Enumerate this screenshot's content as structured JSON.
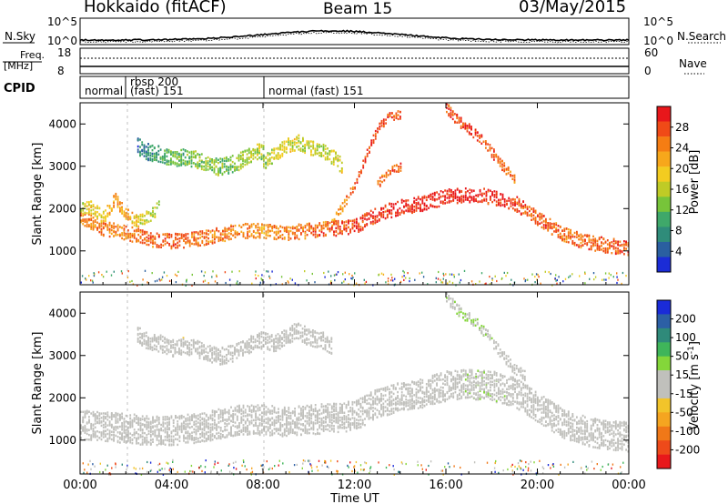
{
  "header": {
    "title": "Hokkaido (fitACF)",
    "beam": "Beam 15",
    "date": "03/May/2015"
  },
  "panels": {
    "nsky": {
      "left_label": "N.Sky",
      "left_ticks": [
        "10^5",
        "10^0"
      ],
      "right_label": "N.Search",
      "right_ticks": [
        "10^5",
        "10^0"
      ]
    },
    "freq": {
      "left_label_1": "Freq.",
      "left_label_2": "[MHz]",
      "left_ticks": [
        "18",
        "8"
      ],
      "right_label": "Nave",
      "right_ticks": [
        "60",
        "0"
      ]
    },
    "cpid": {
      "label": "CPID",
      "segments": [
        {
          "start": "00:00",
          "end": "02:00",
          "text": "normal",
          "text2": ""
        },
        {
          "start": "02:00",
          "end": "08:00",
          "text": "rbsp 200",
          "text2": "(fast) 151"
        },
        {
          "start": "08:00",
          "end": "24:00",
          "text": "normal (fast) 151",
          "text2": ""
        }
      ]
    }
  },
  "time_axis": {
    "ticks": [
      "00:00",
      "04:00",
      "08:00",
      "12:00",
      "16:00",
      "20:00",
      "00:00"
    ],
    "label": "Time UT"
  },
  "colorbars": {
    "power": {
      "label": "Power [dB]",
      "ticks": [
        "28",
        "24",
        "20",
        "16",
        "12",
        "8",
        "4"
      ],
      "colors": [
        "#e8171b",
        "#f04a17",
        "#f57d13",
        "#f7a71b",
        "#f3cc20",
        "#bfcb26",
        "#77c43a",
        "#3fa86a",
        "#2f8c7a",
        "#2a5fa0",
        "#1b2cd6"
      ]
    },
    "velocity": {
      "label": "Velocity [m s",
      "label_sup": "-1",
      "label_end": "]",
      "ticks": [
        "200",
        "100",
        "50",
        "15",
        "-15",
        "-50",
        "-100",
        "-200"
      ],
      "colors": [
        "#1a2bd8",
        "#2c5fa5",
        "#2f8a7a",
        "#3fb55a",
        "#84d63a",
        "#c0c0bc",
        "#c0c0bc",
        "#f2c42a",
        "#f5a520",
        "#f07818",
        "#ee4a1a",
        "#e8181b"
      ]
    }
  },
  "chart_data": {
    "type": "heatmap",
    "x_unit": "hours UT",
    "xlim": [
      0,
      24
    ],
    "panels": [
      {
        "name": "Power",
        "ylabel": "Slant Range [km]",
        "yticks": [
          1000,
          2000,
          3000,
          4000
        ],
        "ylim": [
          200,
          4500
        ],
        "colorbar": "power",
        "cbar_range": [
          0,
          32
        ],
        "bands": [
          {
            "t": [
              0,
              1,
              2,
              3,
              4,
              5,
              6,
              7,
              8,
              9,
              10,
              11,
              12,
              13,
              14,
              15,
              16,
              17,
              18,
              19,
              20,
              21,
              22,
              23,
              24
            ],
            "range": [
              1800,
              1550,
              1450,
              1300,
              1250,
              1300,
              1400,
              1500,
              1500,
              1450,
              1500,
              1550,
              1600,
              1900,
              2050,
              2150,
              2300,
              2350,
              2300,
              2150,
              1800,
              1450,
              1250,
              1150,
              1100
            ],
            "power": [
              24,
              25,
              24,
              26,
              27,
              26,
              25,
              24,
              23,
              25,
              26,
              27,
              28,
              29,
              30,
              30,
              30,
              30,
              29,
              28,
              27,
              26,
              26,
              27,
              27
            ],
            "width": 350
          },
          {
            "t": [
              0,
              0.5,
              1,
              1.5,
              2,
              2.5,
              3,
              3.5
            ],
            "range": [
              2000,
              2050,
              1800,
              2250,
              1900,
              1700,
              1850,
              2100
            ],
            "power": [
              16,
              18,
              20,
              24,
              22,
              18,
              16,
              14
            ],
            "width": 300
          },
          {
            "t": [
              2.5,
              3,
              3.5,
              4,
              4.5,
              5,
              5.5,
              6,
              6.5,
              7,
              7.5,
              8
            ],
            "range": [
              3500,
              3350,
              3300,
              3200,
              3250,
              3200,
              3100,
              3000,
              3050,
              3150,
              3300,
              3400
            ],
            "power": [
              6,
              8,
              10,
              12,
              12,
              13,
              14,
              13,
              12,
              14,
              15,
              14
            ],
            "width": 400
          },
          {
            "t": [
              8,
              8.5,
              9,
              9.5,
              10,
              10.5,
              11,
              11.5
            ],
            "range": [
              3100,
              3300,
              3500,
              3600,
              3450,
              3400,
              3250,
              3000
            ],
            "power": [
              14,
              16,
              18,
              17,
              16,
              15,
              17,
              18
            ],
            "width": 350
          },
          {
            "t": [
              11,
              11.5,
              12,
              12.5,
              13,
              13.5,
              14
            ],
            "range": [
              1700,
              2100,
              2600,
              3300,
              3900,
              4200,
              4250
            ],
            "power": [
              22,
              24,
              26,
              28,
              29,
              28,
              27
            ],
            "width": 200
          },
          {
            "t": [
              13,
              13.5,
              14
            ],
            "range": [
              2600,
              2900,
              3000
            ],
            "power": [
              25,
              27,
              26
            ],
            "width": 200
          },
          {
            "t": [
              16,
              16.5,
              17,
              17.5,
              18,
              18.5,
              19
            ],
            "range": [
              4400,
              4100,
              3900,
              3700,
              3350,
              3000,
              2700
            ],
            "power": [
              27,
              28,
              29,
              28,
              27,
              26,
              24
            ],
            "width": 250
          }
        ]
      },
      {
        "name": "Velocity",
        "ylabel": "Slant Range [km]",
        "yticks": [
          1000,
          2000,
          3000,
          4000
        ],
        "ylim": [
          200,
          4500
        ],
        "colorbar": "velocity",
        "cbar_range": [
          -250,
          250
        ],
        "bands": [
          {
            "t": [
              0,
              1,
              2,
              3,
              4,
              5,
              6,
              7,
              8,
              9,
              10,
              11,
              12,
              13,
              14,
              15,
              16,
              17,
              18,
              19,
              20,
              21,
              22,
              23,
              24
            ],
            "range": [
              1400,
              1350,
              1300,
              1250,
              1250,
              1300,
              1400,
              1500,
              1500,
              1450,
              1500,
              1550,
              1600,
              1900,
              2050,
              2150,
              2300,
              2350,
              2300,
              2150,
              1800,
              1450,
              1250,
              1150,
              1100
            ],
            "vel": [
              0,
              0,
              -5,
              0,
              0,
              0,
              0,
              0,
              5,
              0,
              0,
              0,
              0,
              0,
              0,
              5,
              20,
              30,
              30,
              25,
              0,
              0,
              0,
              0,
              0
            ],
            "width": 700
          },
          {
            "t": [
              2.5,
              3,
              3.5,
              4,
              4.5,
              5,
              5.5,
              6,
              6.5,
              7,
              7.5,
              8,
              8.5,
              9,
              9.5,
              10,
              10.5,
              11
            ],
            "range": [
              3500,
              3350,
              3300,
              3200,
              3250,
              3200,
              3100,
              3000,
              3050,
              3150,
              3300,
              3400,
              3300,
              3500,
              3600,
              3450,
              3400,
              3250
            ],
            "vel": [
              0,
              0,
              -20,
              0,
              -30,
              0,
              0,
              -25,
              0,
              0,
              -30,
              -20,
              0,
              0,
              -25,
              0,
              0,
              0
            ],
            "width": 400
          },
          {
            "t": [
              16,
              16.5,
              17,
              17.5,
              18,
              18.5,
              19,
              19.5
            ],
            "range": [
              4400,
              4100,
              3900,
              3700,
              3350,
              3000,
              2700,
              2500
            ],
            "vel": [
              30,
              35,
              40,
              35,
              30,
              25,
              20,
              15
            ],
            "width": 250
          }
        ]
      }
    ]
  }
}
